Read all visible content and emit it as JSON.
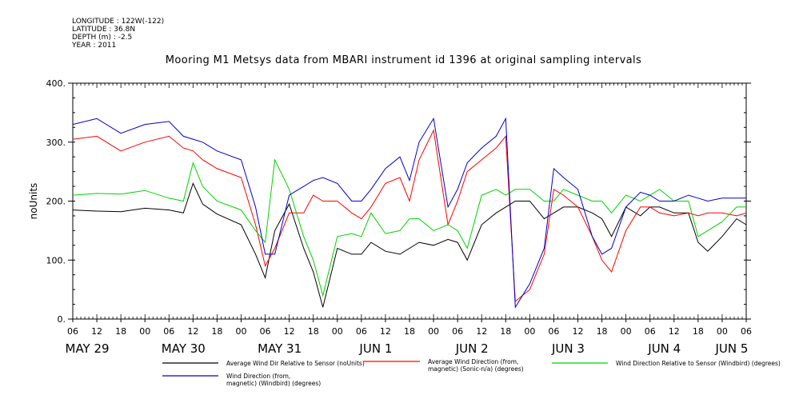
{
  "header": {
    "lines": [
      "LONGITUDE : 122W(-122)",
      "LATITUDE : 36.8N",
      "DEPTH (m) : -2.5",
      "YEAR : 2011"
    ]
  },
  "chart_data": {
    "type": "line",
    "title": "Mooring M1 Metsys data from MBARI instrument id 1396 at original sampling intervals",
    "ylabel": "noUnits",
    "xlabel": "",
    "ylim": [
      0,
      400
    ],
    "xlim": [
      0,
      7
    ],
    "yticks": [
      0,
      100,
      200,
      300,
      400
    ],
    "ytick_labels": [
      "0.",
      "100.",
      "200.",
      "300.",
      "400."
    ],
    "hour_ticks": [
      {
        "t": 0.0,
        "label": "06"
      },
      {
        "t": 0.25,
        "label": "12"
      },
      {
        "t": 0.5,
        "label": "18"
      },
      {
        "t": 0.75,
        "label": "00"
      },
      {
        "t": 1.0,
        "label": "06"
      },
      {
        "t": 1.25,
        "label": "12"
      },
      {
        "t": 1.5,
        "label": "18"
      },
      {
        "t": 1.75,
        "label": "00"
      },
      {
        "t": 2.0,
        "label": "06"
      },
      {
        "t": 2.25,
        "label": "12"
      },
      {
        "t": 2.5,
        "label": "18"
      },
      {
        "t": 2.75,
        "label": "00"
      },
      {
        "t": 3.0,
        "label": "06"
      },
      {
        "t": 3.25,
        "label": "12"
      },
      {
        "t": 3.5,
        "label": "18"
      },
      {
        "t": 3.75,
        "label": "00"
      },
      {
        "t": 4.0,
        "label": "06"
      },
      {
        "t": 4.25,
        "label": "12"
      },
      {
        "t": 4.5,
        "label": "18"
      },
      {
        "t": 4.75,
        "label": "00"
      },
      {
        "t": 5.0,
        "label": "06"
      },
      {
        "t": 5.25,
        "label": "12"
      },
      {
        "t": 5.5,
        "label": "18"
      },
      {
        "t": 5.75,
        "label": "00"
      },
      {
        "t": 6.0,
        "label": "06"
      },
      {
        "t": 6.25,
        "label": "12"
      },
      {
        "t": 6.5,
        "label": "18"
      },
      {
        "t": 6.75,
        "label": "00"
      },
      {
        "t": 7.0,
        "label": "06"
      }
    ],
    "day_labels": [
      {
        "t": 0.15,
        "label": "MAY 29"
      },
      {
        "t": 1.15,
        "label": "MAY 30"
      },
      {
        "t": 2.15,
        "label": "MAY 31"
      },
      {
        "t": 3.15,
        "label": "JUN  1"
      },
      {
        "t": 4.15,
        "label": "JUN  2"
      },
      {
        "t": 5.15,
        "label": "JUN  3"
      },
      {
        "t": 6.15,
        "label": "JUN  4"
      },
      {
        "t": 6.85,
        "label": "JUN  5"
      }
    ],
    "x_units": "days since May 29 2011 06:00",
    "series": [
      {
        "name": "Average Wind Dir Relative to Sensor (noUnits)",
        "color": "#000000",
        "x": [
          0,
          0.25,
          0.5,
          0.75,
          1.0,
          1.15,
          1.25,
          1.35,
          1.5,
          1.75,
          1.9,
          2.0,
          2.1,
          2.25,
          2.4,
          2.5,
          2.6,
          2.75,
          2.9,
          3.0,
          3.1,
          3.25,
          3.4,
          3.5,
          3.6,
          3.75,
          3.9,
          4.0,
          4.1,
          4.25,
          4.4,
          4.5,
          4.6,
          4.75,
          4.9,
          5.0,
          5.1,
          5.25,
          5.4,
          5.5,
          5.6,
          5.75,
          5.9,
          6.0,
          6.1,
          6.25,
          6.4,
          6.5,
          6.6,
          6.75,
          6.9,
          7.0
        ],
        "y": [
          185,
          183,
          182,
          188,
          185,
          180,
          230,
          195,
          178,
          160,
          110,
          70,
          150,
          195,
          120,
          80,
          20,
          120,
          110,
          110,
          130,
          115,
          110,
          120,
          130,
          125,
          135,
          130,
          100,
          160,
          180,
          190,
          200,
          200,
          170,
          180,
          190,
          190,
          180,
          170,
          140,
          190,
          175,
          190,
          190,
          180,
          180,
          130,
          115,
          140,
          170,
          160
        ]
      },
      {
        "name": "Average Wind Direction (from, magnetic) (Sonic-n/a) (degrees)",
        "color": "#ff0000",
        "x": [
          0,
          0.25,
          0.5,
          0.75,
          1.0,
          1.15,
          1.25,
          1.35,
          1.5,
          1.75,
          1.9,
          2.0,
          2.1,
          2.25,
          2.4,
          2.5,
          2.6,
          2.75,
          2.9,
          3.0,
          3.1,
          3.25,
          3.4,
          3.5,
          3.6,
          3.75,
          3.9,
          4.0,
          4.1,
          4.25,
          4.4,
          4.5,
          4.6,
          4.75,
          4.9,
          5.0,
          5.1,
          5.25,
          5.4,
          5.5,
          5.6,
          5.75,
          5.9,
          6.0,
          6.1,
          6.25,
          6.4,
          6.5,
          6.6,
          6.75,
          6.9,
          7.0
        ],
        "y": [
          305,
          310,
          285,
          300,
          310,
          290,
          285,
          270,
          255,
          240,
          160,
          90,
          120,
          180,
          180,
          210,
          200,
          200,
          180,
          170,
          190,
          230,
          240,
          200,
          270,
          320,
          160,
          200,
          250,
          270,
          290,
          310,
          30,
          50,
          110,
          220,
          210,
          190,
          140,
          100,
          80,
          150,
          190,
          190,
          180,
          175,
          180,
          175,
          180,
          180,
          175,
          180
        ]
      },
      {
        "name": "Wind Direction Relative to Sensor (Windbird) (degrees)",
        "color": "#00d400",
        "x": [
          0,
          0.25,
          0.5,
          0.75,
          1.0,
          1.15,
          1.25,
          1.35,
          1.5,
          1.75,
          1.9,
          2.0,
          2.1,
          2.25,
          2.4,
          2.5,
          2.6,
          2.75,
          2.9,
          3.0,
          3.1,
          3.25,
          3.4,
          3.5,
          3.6,
          3.75,
          3.9,
          4.0,
          4.1,
          4.25,
          4.4,
          4.5,
          4.6,
          4.75,
          4.9,
          5.0,
          5.1,
          5.25,
          5.4,
          5.5,
          5.6,
          5.75,
          5.9,
          6.0,
          6.1,
          6.25,
          6.4,
          6.5,
          6.6,
          6.75,
          6.9,
          7.0
        ],
        "y": [
          210,
          213,
          212,
          218,
          205,
          200,
          265,
          225,
          200,
          185,
          150,
          130,
          270,
          220,
          140,
          100,
          40,
          140,
          145,
          140,
          180,
          145,
          150,
          170,
          170,
          150,
          160,
          150,
          120,
          210,
          220,
          210,
          220,
          220,
          200,
          200,
          220,
          210,
          200,
          200,
          180,
          210,
          200,
          210,
          220,
          200,
          200,
          140,
          150,
          165,
          190,
          190
        ]
      },
      {
        "name": "Wind Direction (from, magnetic) (Windbird) (degrees)",
        "color": "#0000cc",
        "x": [
          0,
          0.25,
          0.5,
          0.75,
          1.0,
          1.15,
          1.25,
          1.35,
          1.5,
          1.75,
          1.9,
          2.0,
          2.1,
          2.25,
          2.4,
          2.5,
          2.6,
          2.75,
          2.9,
          3.0,
          3.1,
          3.25,
          3.4,
          3.5,
          3.6,
          3.75,
          3.9,
          4.0,
          4.1,
          4.25,
          4.4,
          4.5,
          4.6,
          4.75,
          4.9,
          5.0,
          5.1,
          5.25,
          5.4,
          5.5,
          5.6,
          5.75,
          5.9,
          6.0,
          6.1,
          6.25,
          6.4,
          6.5,
          6.6,
          6.75,
          6.9,
          7.0
        ],
        "y": [
          330,
          340,
          315,
          330,
          335,
          310,
          305,
          300,
          285,
          270,
          190,
          110,
          110,
          210,
          225,
          235,
          240,
          230,
          200,
          200,
          220,
          255,
          275,
          235,
          300,
          340,
          190,
          220,
          265,
          290,
          310,
          340,
          20,
          60,
          120,
          255,
          240,
          220,
          140,
          110,
          120,
          190,
          215,
          210,
          200,
          200,
          210,
          205,
          200,
          205,
          205,
          205
        ]
      }
    ],
    "legend": {
      "placement": "bottom",
      "items": [
        {
          "series": 0,
          "label_lines": [
            "Average Wind Dir Relative to Sensor (noUnits)"
          ]
        },
        {
          "series": 1,
          "label_lines": [
            "Average Wind Direction (from,",
            "magnetic) (Sonic-n/a) (degrees)"
          ]
        },
        {
          "series": 2,
          "label_lines": [
            "Wind Direction Relative to Sensor (Windbird) (degrees)"
          ]
        },
        {
          "series": 3,
          "label_lines": [
            "Wind Direction (from,",
            "magnetic) (Windbird) (degrees)"
          ]
        }
      ]
    },
    "grid": false
  }
}
